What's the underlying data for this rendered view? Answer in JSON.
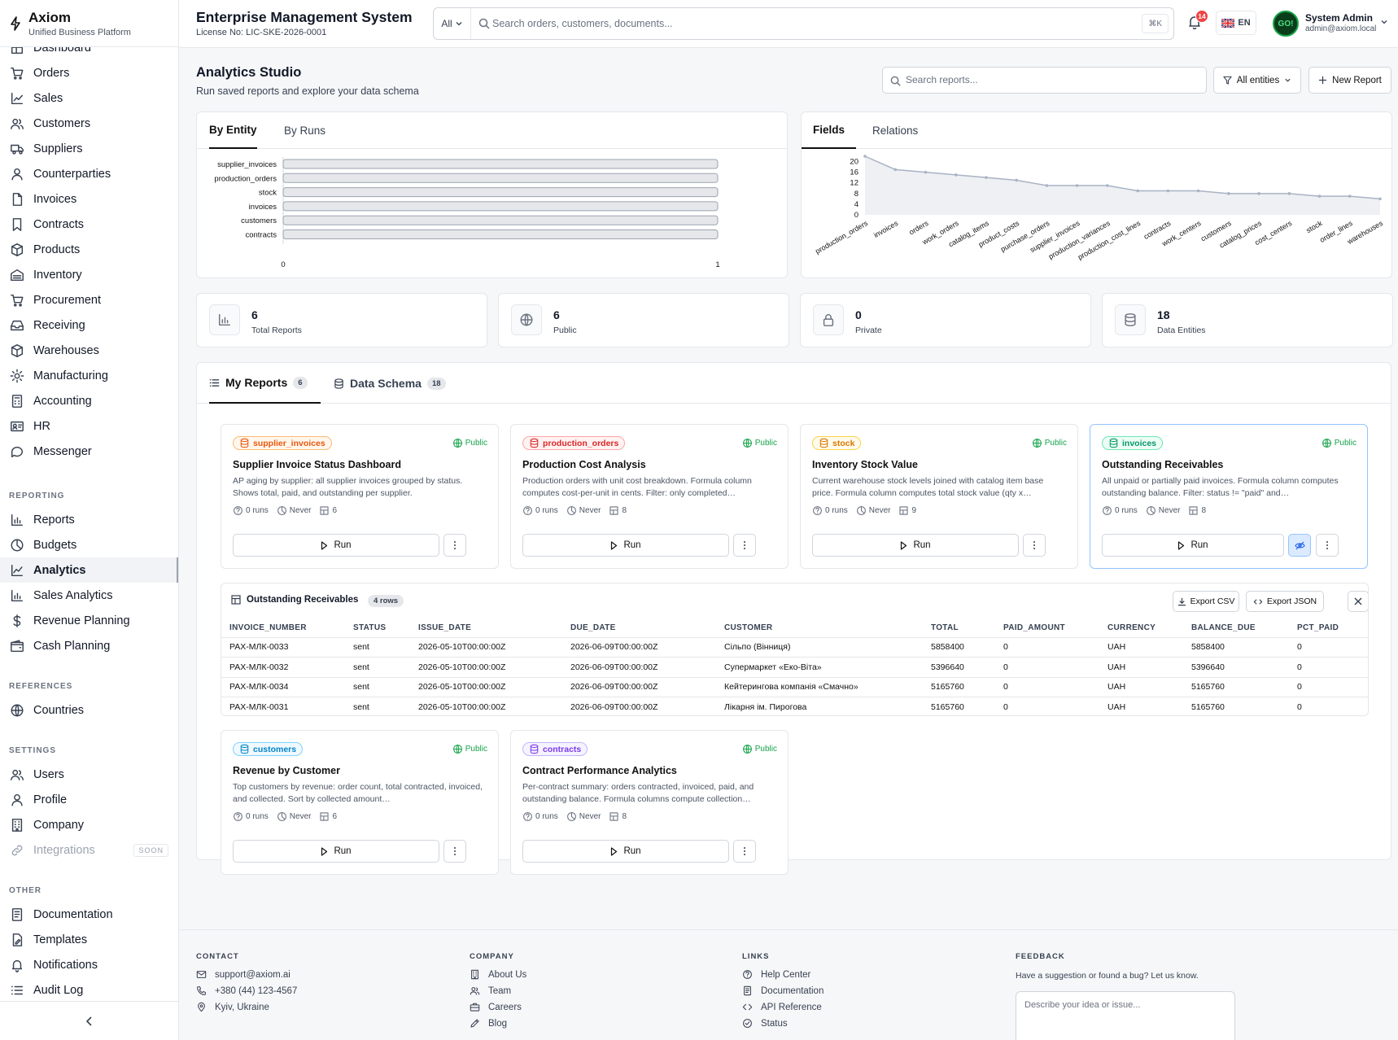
{
  "app": {
    "name": "Axiom",
    "tagline": "Unified Business Platform"
  },
  "header": {
    "title": "Enterprise Management System",
    "license": "License No: LIC-SKE-2026-0001",
    "search_scope": "All",
    "search_placeholder": "Search orders, customers, documents...",
    "shortcut": "⌘K",
    "notifications_count": "14",
    "language": "EN",
    "user": {
      "name": "System Admin",
      "email": "admin@axiom.local",
      "initials": "GO!"
    }
  },
  "sidebar": {
    "items": [
      {
        "label": "Dashboard",
        "icon": "dashboard-icon"
      },
      {
        "label": "Orders",
        "icon": "cart-icon"
      },
      {
        "label": "Sales",
        "icon": "trend-icon"
      },
      {
        "label": "Customers",
        "icon": "users-icon"
      },
      {
        "label": "Suppliers",
        "icon": "truck-icon"
      },
      {
        "label": "Counterparties",
        "icon": "user-icon"
      },
      {
        "label": "Invoices",
        "icon": "file-icon"
      },
      {
        "label": "Contracts",
        "icon": "bookmark-icon"
      },
      {
        "label": "Products",
        "icon": "box-icon"
      },
      {
        "label": "Inventory",
        "icon": "warehouse-icon"
      },
      {
        "label": "Procurement",
        "icon": "cart-icon"
      },
      {
        "label": "Receiving",
        "icon": "inbox-icon"
      },
      {
        "label": "Warehouses",
        "icon": "box-icon"
      },
      {
        "label": "Manufacturing",
        "icon": "gear-icon"
      },
      {
        "label": "Accounting",
        "icon": "calculator-icon"
      },
      {
        "label": "HR",
        "icon": "id-card-icon"
      },
      {
        "label": "Messenger",
        "icon": "chat-icon"
      }
    ],
    "reporting_heading": "REPORTING",
    "reporting": [
      {
        "label": "Reports",
        "icon": "bar-chart-icon"
      },
      {
        "label": "Budgets",
        "icon": "pie-icon"
      },
      {
        "label": "Analytics",
        "icon": "line-chart-icon"
      },
      {
        "label": "Sales Analytics",
        "icon": "bar-chart-icon"
      },
      {
        "label": "Revenue Planning",
        "icon": "dollar-icon"
      },
      {
        "label": "Cash Planning",
        "icon": "wallet-icon"
      }
    ],
    "references_heading": "REFERENCES",
    "references": [
      {
        "label": "Countries",
        "icon": "globe-icon"
      }
    ],
    "settings_heading": "SETTINGS",
    "settings": [
      {
        "label": "Users",
        "icon": "users-icon"
      },
      {
        "label": "Profile",
        "icon": "user-icon"
      },
      {
        "label": "Company",
        "icon": "building-icon"
      },
      {
        "label": "Integrations",
        "icon": "link-icon",
        "badge": "SOON"
      }
    ],
    "other_heading": "OTHER",
    "other": [
      {
        "label": "Documentation",
        "icon": "doc-icon"
      },
      {
        "label": "Templates",
        "icon": "template-icon"
      },
      {
        "label": "Notifications",
        "icon": "bell-icon"
      },
      {
        "label": "Audit Log",
        "icon": "list-icon"
      }
    ]
  },
  "page": {
    "title": "Analytics Studio",
    "subtitle": "Run saved reports and explore your data schema",
    "search_placeholder": "Search reports...",
    "filter_label": "All entities",
    "new_label": "New Report"
  },
  "left_chart": {
    "tabs": [
      "By Entity",
      "By Runs"
    ],
    "active_tab": "By Entity"
  },
  "right_chart": {
    "tabs": [
      "Fields",
      "Relations"
    ],
    "active_tab": "Fields"
  },
  "chart_data": [
    {
      "type": "bar",
      "orientation": "horizontal",
      "categories": [
        "supplier_invoices",
        "production_orders",
        "stock",
        "invoices",
        "customers",
        "contracts"
      ],
      "values": [
        1,
        1,
        1,
        1,
        1,
        1
      ],
      "xlim": [
        0,
        1
      ],
      "xticks": [
        "0",
        "1"
      ]
    },
    {
      "type": "area",
      "categories": [
        "production_orders",
        "invoices",
        "orders",
        "work_orders",
        "catalog_items",
        "product_costs",
        "purchase_orders",
        "supplier_invoices",
        "production_variances",
        "production_cost_lines",
        "contracts",
        "work_centers",
        "customers",
        "catalog_prices",
        "cost_centers",
        "stock",
        "order_lines",
        "warehouses"
      ],
      "values": [
        22,
        17,
        16,
        15,
        14,
        13,
        11,
        11,
        11,
        9,
        9,
        9,
        8,
        8,
        8,
        7,
        7,
        6
      ],
      "ylim": [
        0,
        22
      ],
      "yticks": [
        "0",
        "4",
        "8",
        "12",
        "16",
        "20"
      ]
    }
  ],
  "stats": [
    {
      "value": "6",
      "label": "Total Reports",
      "icon": "bar-chart-icon"
    },
    {
      "value": "6",
      "label": "Public",
      "icon": "globe-icon"
    },
    {
      "value": "0",
      "label": "Private",
      "icon": "lock-icon"
    },
    {
      "value": "18",
      "label": "Data Entities",
      "icon": "database-icon"
    }
  ],
  "report_tabs": [
    {
      "label": "My Reports",
      "count": "6"
    },
    {
      "label": "Data Schema",
      "count": "18"
    }
  ],
  "reports": [
    {
      "entity": "supplier_invoices",
      "color": "#ea580c",
      "bg": "#fff7ed",
      "border": "#fdba74",
      "visibility": "Public",
      "title": "Supplier Invoice Status Dashboard",
      "desc": "AP aging by supplier: all supplier invoices grouped by status. Shows total, paid, and outstanding per supplier.",
      "runs": "0 runs",
      "last": "Never",
      "cols": "6",
      "run_label": "Run"
    },
    {
      "entity": "production_orders",
      "color": "#dc2626",
      "bg": "#fef2f2",
      "border": "#fca5a5",
      "visibility": "Public",
      "title": "Production Cost Analysis",
      "desc": "Production orders with unit cost breakdown. Formula column computes cost-per-unit in cents. Filter: only completed…",
      "runs": "0 runs",
      "last": "Never",
      "cols": "8",
      "run_label": "Run"
    },
    {
      "entity": "stock",
      "color": "#d97706",
      "bg": "#fffbeb",
      "border": "#fcd34d",
      "visibility": "Public",
      "title": "Inventory Stock Value",
      "desc": "Current warehouse stock levels joined with catalog item base price. Formula column computes total stock value (qty x…",
      "runs": "0 runs",
      "last": "Never",
      "cols": "9",
      "run_label": "Run"
    },
    {
      "entity": "invoices",
      "color": "#059669",
      "bg": "#ecfdf5",
      "border": "#6ee7b7",
      "visibility": "Public",
      "title": "Outstanding Receivables",
      "desc": "All unpaid or partially paid invoices. Formula column computes outstanding balance. Filter: status != \"paid\" and…",
      "runs": "0 runs",
      "last": "Never",
      "cols": "8",
      "run_label": "Run"
    },
    {
      "entity": "customers",
      "color": "#0284c7",
      "bg": "#f0f9ff",
      "border": "#7dd3fc",
      "visibility": "Public",
      "title": "Revenue by Customer",
      "desc": "Top customers by revenue: order count, total contracted, invoiced, and collected. Sort by collected amount…",
      "runs": "0 runs",
      "last": "Never",
      "cols": "6",
      "run_label": "Run"
    },
    {
      "entity": "contracts",
      "color": "#7c3aed",
      "bg": "#f5f3ff",
      "border": "#c4b5fd",
      "visibility": "Public",
      "title": "Contract Performance Analytics",
      "desc": "Per-contract summary: orders contracted, invoiced, paid, and outstanding balance. Formula columns compute collection…",
      "runs": "0 runs",
      "last": "Never",
      "cols": "8",
      "run_label": "Run"
    }
  ],
  "result": {
    "title": "Outstanding Receivables",
    "rows_label": "4 rows",
    "export_csv": "Export CSV",
    "export_json": "Export JSON",
    "columns": [
      "INVOICE_NUMBER",
      "STATUS",
      "ISSUE_DATE",
      "DUE_DATE",
      "CUSTOMER",
      "TOTAL",
      "PAID_AMOUNT",
      "CURRENCY",
      "BALANCE_DUE",
      "PCT_PAID"
    ],
    "rows": [
      [
        "РАХ-МЛК-0033",
        "sent",
        "2026-05-10T00:00:00Z",
        "2026-06-09T00:00:00Z",
        "Сільпо (Вінниця)",
        "5858400",
        "0",
        "UAH",
        "5858400",
        "0"
      ],
      [
        "РАХ-МЛК-0032",
        "sent",
        "2026-05-10T00:00:00Z",
        "2026-06-09T00:00:00Z",
        "Супермаркет «Еко-Віта»",
        "5396640",
        "0",
        "UAH",
        "5396640",
        "0"
      ],
      [
        "РАХ-МЛК-0034",
        "sent",
        "2026-05-10T00:00:00Z",
        "2026-06-09T00:00:00Z",
        "Кейтерингова компанія «Смачно»",
        "5165760",
        "0",
        "UAH",
        "5165760",
        "0"
      ],
      [
        "РАХ-МЛК-0031",
        "sent",
        "2026-05-10T00:00:00Z",
        "2026-06-09T00:00:00Z",
        "Лікарня ім. Пирогова",
        "5165760",
        "0",
        "UAH",
        "5165760",
        "0"
      ]
    ]
  },
  "footer": {
    "contact_heading": "CONTACT",
    "contact": [
      {
        "label": "support@axiom.ai",
        "icon": "mail-icon"
      },
      {
        "label": "+380 (44) 123-4567",
        "icon": "phone-icon"
      },
      {
        "label": "Kyiv, Ukraine",
        "icon": "pin-icon"
      }
    ],
    "company_heading": "COMPANY",
    "company": [
      {
        "label": "About Us",
        "icon": "building-icon"
      },
      {
        "label": "Team",
        "icon": "users-icon"
      },
      {
        "label": "Careers",
        "icon": "briefcase-icon"
      },
      {
        "label": "Blog",
        "icon": "pen-icon"
      }
    ],
    "links_heading": "LINKS",
    "links": [
      {
        "label": "Help Center",
        "icon": "help-icon"
      },
      {
        "label": "Documentation",
        "icon": "doc-icon"
      },
      {
        "label": "API Reference",
        "icon": "code-icon"
      },
      {
        "label": "Status",
        "icon": "check-circle-icon"
      }
    ],
    "feedback_heading": "FEEDBACK",
    "feedback_sub": "Have a suggestion or found a bug? Let us know.",
    "feedback_placeholder": "Describe your idea or issue..."
  }
}
